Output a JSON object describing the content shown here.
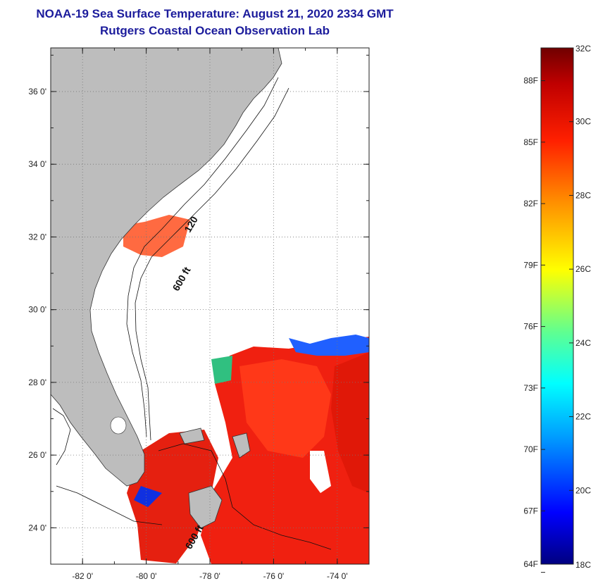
{
  "title": {
    "line1": "NOAA-19 Sea Surface Temperature:  August 21, 2020 2334 GMT",
    "line2": "Rutgers Coastal Ocean Observation Lab"
  },
  "map": {
    "lon_range": [
      -83.0,
      -73.0
    ],
    "lat_range": [
      23.0,
      37.2
    ],
    "lon_ticks": [
      {
        "value": -82,
        "label": "-82 0'"
      },
      {
        "value": -80,
        "label": "-80 0'"
      },
      {
        "value": -78,
        "label": "-78 0'"
      },
      {
        "value": -76,
        "label": "-76 0'"
      },
      {
        "value": -74,
        "label": "-74 0'"
      }
    ],
    "lat_ticks": [
      {
        "value": 36,
        "label": "36 0'"
      },
      {
        "value": 34,
        "label": "34 0'"
      },
      {
        "value": 32,
        "label": "32 0'"
      },
      {
        "value": 30,
        "label": "30 0'"
      },
      {
        "value": 28,
        "label": "28 0'"
      },
      {
        "value": 26,
        "label": "26 0'"
      },
      {
        "value": 24,
        "label": "24 0'"
      }
    ],
    "grid": true,
    "land_color": "#bdbdbd",
    "isobath_labels": [
      {
        "text": "120",
        "lon": -78.5,
        "lat": 32.3
      },
      {
        "text": "600 ft",
        "lon": -78.8,
        "lat": 30.8
      },
      {
        "text": "600 ft",
        "lon": -78.4,
        "lat": 23.7
      }
    ]
  },
  "colorbar": {
    "celsius": [
      "32C",
      "30C",
      "28C",
      "26C",
      "24C",
      "22C",
      "20C",
      "18C"
    ],
    "celsius_values": [
      32,
      30,
      28,
      26,
      24,
      22,
      20,
      18
    ],
    "fahrenheit": [
      "88F",
      "85F",
      "82F",
      "79F",
      "76F",
      "73F",
      "70F",
      "67F",
      "64F"
    ],
    "fahrenheit_values": [
      88,
      85,
      82,
      79,
      76,
      73,
      70,
      67,
      64
    ],
    "range_c": [
      18,
      32
    ],
    "colors": [
      "#000080",
      "#0000ff",
      "#00a0ff",
      "#00ffff",
      "#60ff90",
      "#ffff00",
      "#ff9000",
      "#ff2000",
      "#a00000",
      "#700000"
    ]
  }
}
